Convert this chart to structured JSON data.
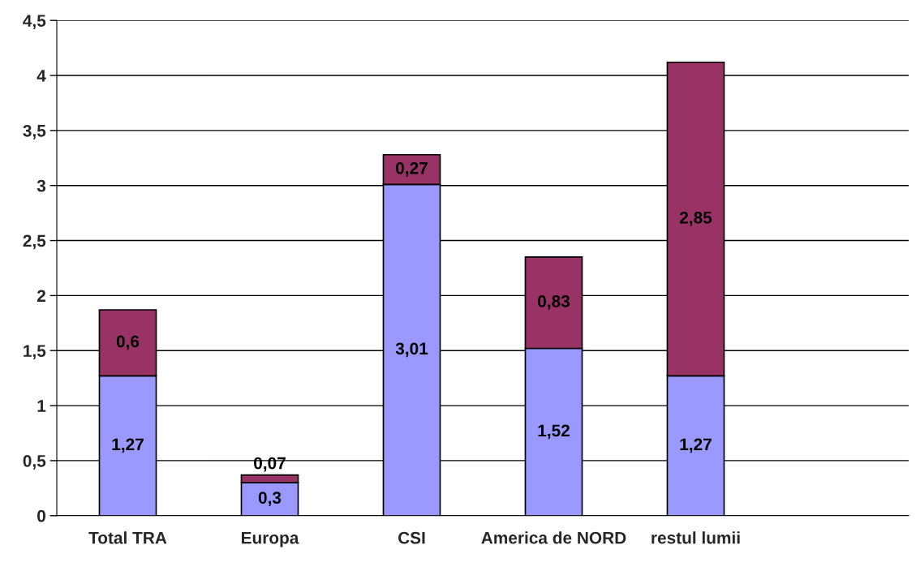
{
  "chart_data": {
    "type": "bar",
    "stacked": true,
    "categories": [
      "Total TRA",
      "Europa",
      "CSI",
      "America de NORD",
      "restul lumii",
      null
    ],
    "series": [
      {
        "color": "#9999ff",
        "values": [
          1.27,
          0.3,
          3.01,
          1.52,
          1.27,
          null
        ],
        "value_labels": [
          "1,27",
          "0,3",
          "3,01",
          "1,52",
          "1,27",
          null
        ]
      },
      {
        "color": "#993366",
        "values": [
          0.6,
          0.07,
          0.27,
          0.83,
          2.85,
          null
        ],
        "value_labels": [
          "0,6",
          "0,07",
          "0,27",
          "0,83",
          "2,85",
          null
        ]
      }
    ],
    "ylim": [
      0,
      4.5
    ],
    "yticks": [
      0,
      {
        "value": 0.5,
        "label": "0,5"
      },
      1,
      {
        "value": 1.5,
        "label": "1,5"
      },
      2,
      {
        "value": 2.5,
        "label": "2,5"
      },
      3,
      {
        "value": 3.5,
        "label": "3,5"
      },
      4,
      {
        "value": 4.5,
        "label": "4,5"
      }
    ],
    "grid": "y",
    "legend": false
  }
}
